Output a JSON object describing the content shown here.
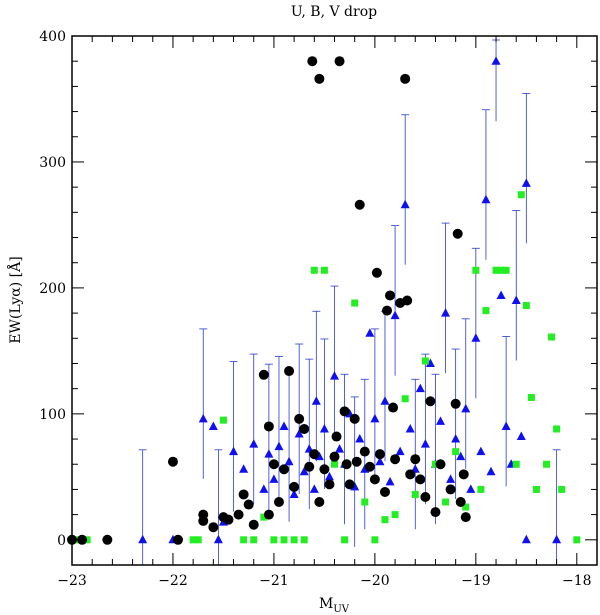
{
  "chart_data": {
    "type": "scatter",
    "title": "U, B, V drop",
    "xlabel_main": "M",
    "xlabel_sub": "UV",
    "ylabel": "EW(Lyα) [Å]",
    "xlim": [
      -23,
      -17.8
    ],
    "ylim": [
      -20,
      400
    ],
    "x_ticks": [
      -23,
      -22,
      -21,
      -20,
      -19,
      -18
    ],
    "x_tick_labels": [
      "−23",
      "−22",
      "−21",
      "−20",
      "−19",
      "−18"
    ],
    "y_ticks": [
      0,
      100,
      200,
      300,
      400
    ],
    "y_tick_labels": [
      "0",
      "100",
      "200",
      "300",
      "400"
    ],
    "grid": false,
    "series": [
      {
        "marker": "circle",
        "color": "#000000",
        "points": [
          [
            -23.0,
            0
          ],
          [
            -22.9,
            0
          ],
          [
            -22.65,
            0
          ],
          [
            -22.0,
            62
          ],
          [
            -21.95,
            0
          ],
          [
            -21.7,
            20
          ],
          [
            -21.7,
            15
          ],
          [
            -21.6,
            10
          ],
          [
            -21.5,
            18
          ],
          [
            -21.45,
            16
          ],
          [
            -21.35,
            20
          ],
          [
            -21.3,
            36
          ],
          [
            -21.25,
            28
          ],
          [
            -21.2,
            12
          ],
          [
            -21.1,
            131
          ],
          [
            -21.05,
            20
          ],
          [
            -21.05,
            90
          ],
          [
            -21.0,
            60
          ],
          [
            -20.95,
            30
          ],
          [
            -20.9,
            56
          ],
          [
            -20.85,
            134
          ],
          [
            -20.8,
            42
          ],
          [
            -20.75,
            96
          ],
          [
            -20.7,
            88
          ],
          [
            -20.65,
            58
          ],
          [
            -20.62,
            380
          ],
          [
            -20.6,
            68
          ],
          [
            -20.55,
            366
          ],
          [
            -20.55,
            30
          ],
          [
            -20.5,
            56
          ],
          [
            -20.45,
            44
          ],
          [
            -20.4,
            66
          ],
          [
            -20.38,
            82
          ],
          [
            -20.35,
            380
          ],
          [
            -20.3,
            102
          ],
          [
            -20.28,
            60
          ],
          [
            -20.25,
            44
          ],
          [
            -20.2,
            96
          ],
          [
            -20.18,
            62
          ],
          [
            -20.15,
            266
          ],
          [
            -20.1,
            70
          ],
          [
            -20.05,
            58
          ],
          [
            -20.0,
            48
          ],
          [
            -19.98,
            212
          ],
          [
            -19.95,
            68
          ],
          [
            -19.9,
            38
          ],
          [
            -19.88,
            182
          ],
          [
            -19.85,
            194
          ],
          [
            -19.82,
            105
          ],
          [
            -19.8,
            64
          ],
          [
            -19.75,
            188
          ],
          [
            -19.7,
            366
          ],
          [
            -19.68,
            190
          ],
          [
            -19.65,
            52
          ],
          [
            -19.6,
            64
          ],
          [
            -19.55,
            48
          ],
          [
            -19.5,
            34
          ],
          [
            -19.45,
            110
          ],
          [
            -19.4,
            22
          ],
          [
            -19.35,
            60
          ],
          [
            -19.25,
            40
          ],
          [
            -19.2,
            108
          ],
          [
            -19.18,
            243
          ],
          [
            -19.15,
            30
          ],
          [
            -19.12,
            52
          ],
          [
            -19.1,
            18
          ]
        ]
      },
      {
        "marker": "triangle",
        "color": "#1010ee",
        "points": [
          [
            -22.3,
            0
          ],
          [
            -22.0,
            0
          ],
          [
            -21.7,
            96
          ],
          [
            -21.6,
            90
          ],
          [
            -21.55,
            0
          ],
          [
            -21.5,
            14
          ],
          [
            -21.4,
            70
          ],
          [
            -21.3,
            56
          ],
          [
            -21.2,
            76
          ],
          [
            -21.1,
            40
          ],
          [
            -21.05,
            68
          ],
          [
            -21.0,
            48
          ],
          [
            -20.95,
            74
          ],
          [
            -20.9,
            90
          ],
          [
            -20.85,
            62
          ],
          [
            -20.8,
            36
          ],
          [
            -20.75,
            84
          ],
          [
            -20.7,
            54
          ],
          [
            -20.65,
            72
          ],
          [
            -20.6,
            40
          ],
          [
            -20.58,
            110
          ],
          [
            -20.55,
            66
          ],
          [
            -20.5,
            88
          ],
          [
            -20.45,
            50
          ],
          [
            -20.4,
            130
          ],
          [
            -20.35,
            72
          ],
          [
            -20.3,
            60
          ],
          [
            -20.25,
            100
          ],
          [
            -20.2,
            42
          ],
          [
            -20.15,
            80
          ],
          [
            -20.1,
            56
          ],
          [
            -20.05,
            164
          ],
          [
            -20.0,
            96
          ],
          [
            -19.95,
            62
          ],
          [
            -19.9,
            110
          ],
          [
            -19.85,
            46
          ],
          [
            -19.8,
            178
          ],
          [
            -19.75,
            70
          ],
          [
            -19.7,
            266
          ],
          [
            -19.65,
            88
          ],
          [
            -19.6,
            56
          ],
          [
            -19.55,
            120
          ],
          [
            -19.5,
            76
          ],
          [
            -19.45,
            140
          ],
          [
            -19.4,
            60
          ],
          [
            -19.35,
            94
          ],
          [
            -19.3,
            180
          ],
          [
            -19.25,
            48
          ],
          [
            -19.2,
            80
          ],
          [
            -19.15,
            66
          ],
          [
            -19.1,
            104
          ],
          [
            -19.05,
            40
          ],
          [
            -19.0,
            160
          ],
          [
            -18.95,
            70
          ],
          [
            -18.9,
            270
          ],
          [
            -18.85,
            54
          ],
          [
            -18.8,
            380
          ],
          [
            -18.75,
            194
          ],
          [
            -18.7,
            90
          ],
          [
            -18.65,
            60
          ],
          [
            -18.6,
            190
          ],
          [
            -18.55,
            82
          ],
          [
            -18.5,
            283
          ],
          [
            -18.5,
            0
          ],
          [
            -18.2,
            0
          ]
        ]
      },
      {
        "marker": "square",
        "color": "#22ee22",
        "points": [
          [
            -22.95,
            0
          ],
          [
            -22.85,
            0
          ],
          [
            -21.8,
            0
          ],
          [
            -21.75,
            0
          ],
          [
            -21.5,
            95
          ],
          [
            -21.3,
            0
          ],
          [
            -21.2,
            0
          ],
          [
            -21.1,
            18
          ],
          [
            -21.0,
            0
          ],
          [
            -20.9,
            0
          ],
          [
            -20.8,
            0
          ],
          [
            -20.7,
            0
          ],
          [
            -20.6,
            214
          ],
          [
            -20.5,
            214
          ],
          [
            -20.4,
            60
          ],
          [
            -20.3,
            0
          ],
          [
            -20.2,
            188
          ],
          [
            -20.1,
            30
          ],
          [
            -20.0,
            0
          ],
          [
            -19.9,
            16
          ],
          [
            -19.8,
            20
          ],
          [
            -19.7,
            112
          ],
          [
            -19.6,
            36
          ],
          [
            -19.5,
            142
          ],
          [
            -19.4,
            60
          ],
          [
            -19.3,
            30
          ],
          [
            -19.2,
            70
          ],
          [
            -19.1,
            26
          ],
          [
            -19.0,
            214
          ],
          [
            -18.95,
            40
          ],
          [
            -18.9,
            182
          ],
          [
            -18.8,
            214
          ],
          [
            -18.75,
            214
          ],
          [
            -18.7,
            214
          ],
          [
            -18.6,
            60
          ],
          [
            -18.55,
            274
          ],
          [
            -18.5,
            186
          ],
          [
            -18.45,
            113
          ],
          [
            -18.4,
            40
          ],
          [
            -18.3,
            60
          ],
          [
            -18.25,
            161
          ],
          [
            -18.2,
            88
          ],
          [
            -18.15,
            40
          ],
          [
            -18.0,
            0
          ]
        ]
      }
    ]
  }
}
